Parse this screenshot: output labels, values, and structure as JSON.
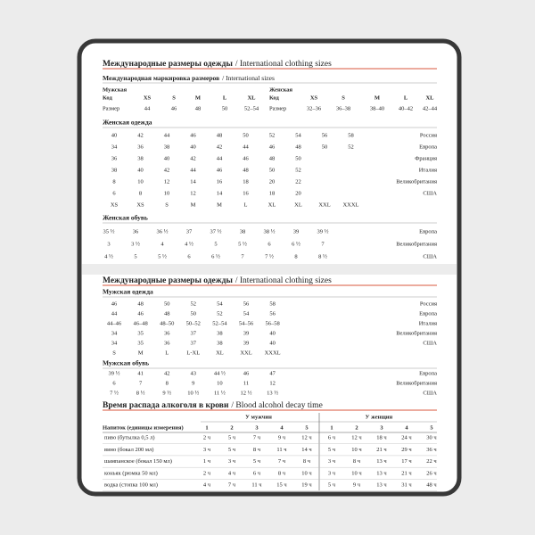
{
  "clothing_sizes": {
    "title_ru": "Международные размеры одежды",
    "title_en": "/ International clothing sizes",
    "international": {
      "title_ru": "Международная маркировка размеров",
      "title_en": "/ International sizes",
      "men": {
        "label": "Мужская",
        "code_label": "Код",
        "codes": [
          "XS",
          "S",
          "M",
          "L",
          "XL"
        ],
        "size_label": "Размер",
        "sizes": [
          "44",
          "46",
          "48",
          "50",
          "52–54"
        ]
      },
      "women": {
        "label": "Женская",
        "code_label": "Код",
        "codes": [
          "XS",
          "S",
          "M",
          "L",
          "XL"
        ],
        "size_label": "Размер",
        "sizes": [
          "32–36",
          "36–38",
          "38–40",
          "40–42",
          "42–44"
        ]
      }
    },
    "womens_clothing": {
      "title": "Женская одежда",
      "rows": [
        {
          "values": [
            "40",
            "42",
            "44",
            "46",
            "48",
            "50",
            "52",
            "54",
            "56",
            "58"
          ],
          "country": "Россия"
        },
        {
          "values": [
            "34",
            "36",
            "38",
            "40",
            "42",
            "44",
            "46",
            "48",
            "50",
            "52"
          ],
          "country": "Европа"
        },
        {
          "values": [
            "36",
            "38",
            "40",
            "42",
            "44",
            "46",
            "48",
            "50"
          ],
          "country": "Франция"
        },
        {
          "values": [
            "38",
            "40",
            "42",
            "44",
            "46",
            "48",
            "50",
            "52"
          ],
          "country": "Италия"
        },
        {
          "values": [
            "8",
            "10",
            "12",
            "14",
            "16",
            "18",
            "20",
            "22"
          ],
          "country": "Великобритания"
        },
        {
          "values": [
            "6",
            "8",
            "10",
            "12",
            "14",
            "16",
            "18",
            "20"
          ],
          "country": "США"
        },
        {
          "values": [
            "XS",
            "XS",
            "S",
            "M",
            "M",
            "L",
            "XL",
            "XL",
            "XXL",
            "XXXL"
          ]
        }
      ]
    },
    "womens_shoes": {
      "title": "Женская обувь",
      "rows": [
        {
          "values": [
            "35 ½",
            "36",
            "36 ½",
            "37",
            "37 ½",
            "38",
            "38 ½",
            "39",
            "39 ½"
          ],
          "country": "Европа"
        },
        {
          "values": [
            "3",
            "3 ½",
            "4",
            "4 ½",
            "5",
            "5 ½",
            "6",
            "6 ½",
            "7"
          ],
          "country": "Великобритания"
        },
        {
          "values": [
            "4 ½",
            "5",
            "5 ½",
            "6",
            "6 ½",
            "7",
            "7 ½",
            "8",
            "8 ½"
          ],
          "country": "США"
        }
      ]
    }
  },
  "clothing_sizes_2": {
    "title_ru": "Международные размеры одежды",
    "title_en": "/ International clothing sizes",
    "mens_clothing": {
      "title": "Мужская одежда",
      "rows": [
        {
          "values": [
            "46",
            "48",
            "50",
            "52",
            "54",
            "56",
            "58"
          ],
          "country": "Россия"
        },
        {
          "values": [
            "44",
            "46",
            "48",
            "50",
            "52",
            "54",
            "56"
          ],
          "country": "Европа"
        },
        {
          "values": [
            "44–46",
            "46–48",
            "48–50",
            "50–52",
            "52–54",
            "54–56",
            "56–58"
          ],
          "country": "Италия"
        },
        {
          "values": [
            "34",
            "35",
            "36",
            "37",
            "38",
            "39",
            "40"
          ],
          "country": "Великобритания"
        },
        {
          "values": [
            "34",
            "35",
            "36",
            "37",
            "38",
            "39",
            "40"
          ],
          "country": "США"
        },
        {
          "values": [
            "S",
            "M",
            "L",
            "L-XL",
            "XL",
            "XXL",
            "XXXL"
          ]
        }
      ]
    },
    "mens_shoes": {
      "title": "Мужская обувь",
      "rows": [
        {
          "values": [
            "39 ½",
            "41",
            "42",
            "43",
            "44 ½",
            "46",
            "47"
          ],
          "country": "Европа"
        },
        {
          "values": [
            "6",
            "7",
            "8",
            "9",
            "10",
            "11",
            "12"
          ],
          "country": "Великобритания"
        },
        {
          "values": [
            "7 ½",
            "8 ½",
            "9 ½",
            "10 ½",
            "11 ½",
            "12 ½",
            "13 ½"
          ],
          "country": "США"
        }
      ]
    }
  },
  "alcohol": {
    "title_ru": "Время распада алкоголя в крови",
    "title_en": "/ Blood alcohol decay time",
    "men_label": "У мужчин",
    "women_label": "У женщин",
    "drink_header": "Напиток (единицы измерения)",
    "columns": [
      1,
      2,
      3,
      4,
      5
    ],
    "rows": [
      {
        "drink": "пиво (бутылка 0,5 л)",
        "men": [
          "2 ч",
          "5 ч",
          "7 ч",
          "9 ч",
          "12 ч"
        ],
        "women": [
          "6 ч",
          "12 ч",
          "18 ч",
          "24 ч",
          "30 ч"
        ]
      },
      {
        "drink": "вино (бокал 200 мл)",
        "men": [
          "3 ч",
          "5 ч",
          "8 ч",
          "11 ч",
          "14 ч"
        ],
        "women": [
          "5 ч",
          "10 ч",
          "21 ч",
          "29 ч",
          "36 ч"
        ]
      },
      {
        "drink": "шампанское (бокал 150 мл)",
        "men": [
          "1 ч",
          "3 ч",
          "5 ч",
          "7 ч",
          "8 ч"
        ],
        "women": [
          "3 ч",
          "8 ч",
          "13 ч",
          "17 ч",
          "22 ч"
        ]
      },
      {
        "drink": "коньяк (рюмка 50 мл)",
        "men": [
          "2 ч",
          "4 ч",
          "6 ч",
          "8 ч",
          "10 ч"
        ],
        "women": [
          "3 ч",
          "10 ч",
          "13 ч",
          "21 ч",
          "26 ч"
        ]
      },
      {
        "drink": "водка (стопка 100 мл)",
        "men": [
          "4 ч",
          "7 ч",
          "11 ч",
          "15 ч",
          "19 ч"
        ],
        "women": [
          "5 ч",
          "9 ч",
          "13 ч",
          "31 ч",
          "48 ч"
        ]
      }
    ]
  }
}
